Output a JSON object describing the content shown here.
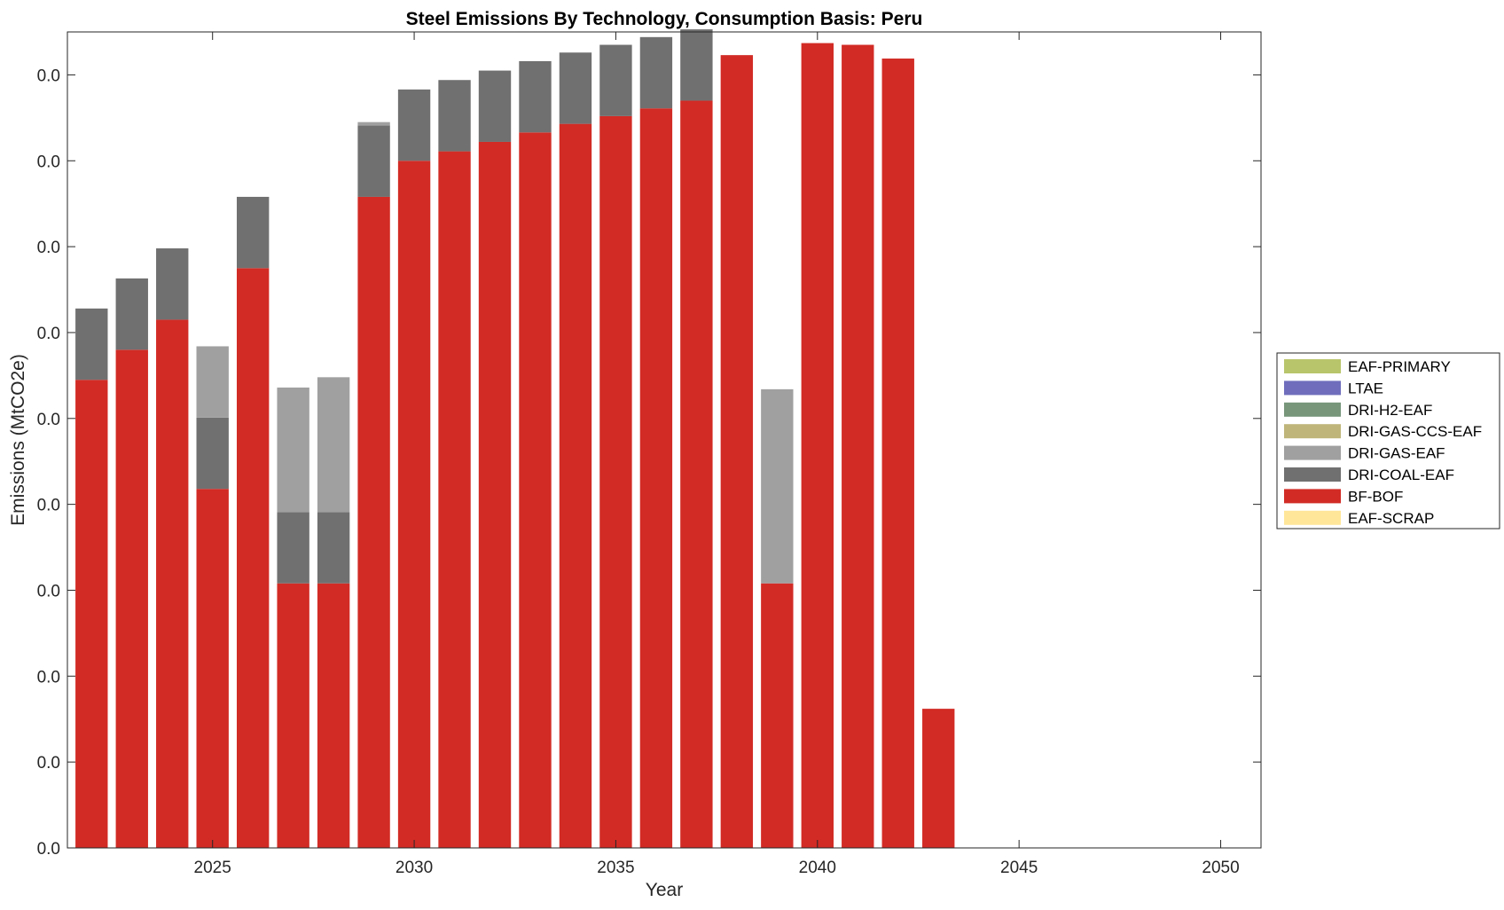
{
  "chart_data": {
    "type": "bar",
    "stacked": true,
    "title": "Steel Emissions By Technology, Consumption Basis: Peru",
    "xlabel": "Year",
    "ylabel": "Emissions (MtCO2e)",
    "xlim": [
      2021.4,
      2051
    ],
    "ylim": [
      0,
      0.0095
    ],
    "x_ticks": [
      2025,
      2030,
      2035,
      2040,
      2045,
      2050
    ],
    "y_ticks": [
      0,
      0.001,
      0.002,
      0.003,
      0.004,
      0.005,
      0.006,
      0.007,
      0.008,
      0.009
    ],
    "y_tick_labels": [
      "0.0",
      "0.0",
      "0.0",
      "0.0",
      "0.0",
      "0.0",
      "0.0",
      "0.0",
      "0.0",
      "0.0"
    ],
    "categories": [
      2022,
      2023,
      2024,
      2025,
      2026,
      2027,
      2028,
      2029,
      2030,
      2031,
      2032,
      2033,
      2034,
      2035,
      2036,
      2037,
      2038,
      2039,
      2040,
      2041,
      2042,
      2043
    ],
    "series": [
      {
        "name": "EAF-SCRAP",
        "color": "#FFE699",
        "values": [
          0,
          0,
          0,
          0,
          0,
          0,
          0,
          0,
          0,
          0,
          0,
          0,
          0,
          0,
          0,
          0,
          0,
          0,
          0,
          0,
          0,
          0
        ]
      },
      {
        "name": "BF-BOF",
        "color": "#D22B25",
        "values": [
          0.00545,
          0.0058,
          0.00615,
          0.00418,
          0.00675,
          0.00308,
          0.00308,
          0.00758,
          0.008,
          0.00811,
          0.00822,
          0.00833,
          0.00843,
          0.00852,
          0.00861,
          0.0087,
          0.00923,
          0.00308,
          0.00937,
          0.00935,
          0.00919,
          0.00162
        ]
      },
      {
        "name": "DRI-COAL-EAF",
        "color": "#707070",
        "values": [
          0.00083,
          0.00083,
          0.00083,
          0.00083,
          0.00083,
          0.00083,
          0.00083,
          0.00083,
          0.00083,
          0.00083,
          0.00083,
          0.00083,
          0.00083,
          0.00083,
          0.00083,
          0.00083,
          0,
          0,
          0,
          0,
          0,
          0
        ]
      },
      {
        "name": "DRI-GAS-EAF",
        "color": "#A0A0A0",
        "values": [
          0,
          0,
          0,
          0.00083,
          0,
          0.00145,
          0.00157,
          4e-05,
          0,
          0,
          0,
          0,
          0,
          0,
          0,
          0,
          0,
          0.00226,
          0,
          0,
          0,
          0
        ]
      },
      {
        "name": "DRI-GAS-CCS-EAF",
        "color": "#BFB57A",
        "values": [
          0,
          0,
          0,
          0,
          0,
          0,
          0,
          0,
          0,
          0,
          0,
          0,
          0,
          0,
          0,
          0,
          0,
          0,
          0,
          0,
          0,
          0
        ]
      },
      {
        "name": "DRI-H2-EAF",
        "color": "#77967A",
        "values": [
          0,
          0,
          0,
          0,
          0,
          0,
          0,
          0,
          0,
          0,
          0,
          0,
          0,
          0,
          0,
          0,
          0,
          0,
          0,
          0,
          0,
          0
        ]
      },
      {
        "name": "LTAE",
        "color": "#6F6DBC",
        "values": [
          0,
          0,
          0,
          0,
          0,
          0,
          0,
          0,
          0,
          0,
          0,
          0,
          0,
          0,
          0,
          0,
          0,
          0,
          0,
          0,
          0,
          0
        ]
      },
      {
        "name": "EAF-PRIMARY",
        "color": "#B9C56B",
        "values": [
          0,
          0,
          0,
          0,
          0,
          0,
          0,
          0,
          0,
          0,
          0,
          0,
          0,
          0,
          0,
          0,
          0,
          0,
          0,
          0,
          0,
          0
        ]
      }
    ],
    "legend": {
      "position": "right",
      "entries": [
        {
          "name": "EAF-PRIMARY",
          "color": "#B9C56B"
        },
        {
          "name": "LTAE",
          "color": "#6F6DBC"
        },
        {
          "name": "DRI-H2-EAF",
          "color": "#77967A"
        },
        {
          "name": "DRI-GAS-CCS-EAF",
          "color": "#BFB57A"
        },
        {
          "name": "DRI-GAS-EAF",
          "color": "#A0A0A0"
        },
        {
          "name": "DRI-COAL-EAF",
          "color": "#707070"
        },
        {
          "name": "BF-BOF",
          "color": "#D22B25"
        },
        {
          "name": "EAF-SCRAP",
          "color": "#FFE699"
        }
      ]
    },
    "grid": false
  }
}
